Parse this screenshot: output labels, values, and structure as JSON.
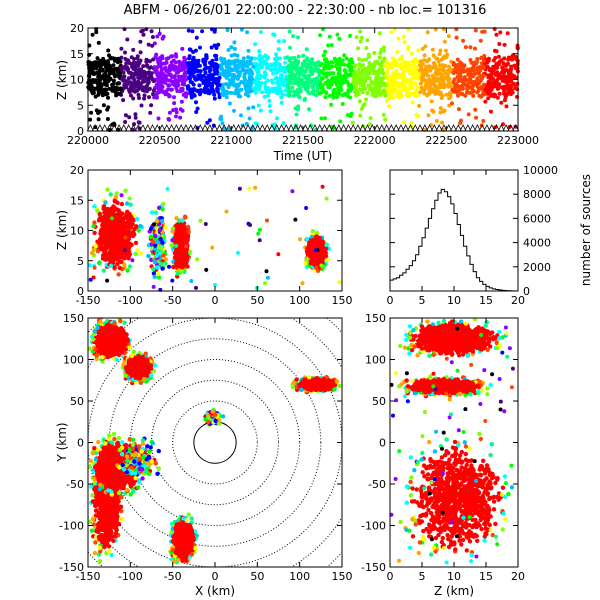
{
  "title": "ABFM - 06/26/01 22:00:00 - 22:30:00 - nb loc.= 101316",
  "colors": {
    "scatter_dense": "#ff0000",
    "rainbow": [
      "#000000",
      "#4b0082",
      "#8b00ff",
      "#0000ff",
      "#00bfff",
      "#00ffff",
      "#00ff7f",
      "#00ff00",
      "#7fff00",
      "#ffff00",
      "#ffa500",
      "#ff4500",
      "#ff0000"
    ],
    "axis": "#000000"
  },
  "chart_data": [
    {
      "id": "time-height",
      "type": "scatter",
      "xlabel": "Time (UT)",
      "ylabel": "Z (km)",
      "xlim": [
        220000,
        223000
      ],
      "ylim": [
        0,
        20
      ],
      "xticks": [
        "220000",
        "220500",
        "221000",
        "221500",
        "222000",
        "222500",
        "223000"
      ],
      "yticks": [
        "0",
        "5",
        "10",
        "15",
        "20"
      ],
      "description_series": [
        {
          "z_band": [
            7,
            14
          ],
          "color_by": "time"
        }
      ]
    },
    {
      "id": "x-z",
      "type": "scatter",
      "xlabel": "",
      "ylabel": "Z (km)",
      "xlim": [
        -150,
        150
      ],
      "ylim": [
        0,
        20
      ],
      "xticks": [
        "-150",
        "-100",
        "-50",
        "0",
        "50",
        "100",
        "150"
      ],
      "yticks": [
        "0",
        "5",
        "10",
        "15",
        "20"
      ],
      "clusters": [
        {
          "x": [
            -150,
            -85
          ],
          "z": [
            2,
            17
          ],
          "dense": true
        },
        {
          "x": [
            -80,
            -55
          ],
          "z": [
            1,
            15
          ],
          "dense": false
        },
        {
          "x": [
            -52,
            -28
          ],
          "z": [
            2,
            13
          ],
          "dense": true
        },
        {
          "x": [
            105,
            135
          ],
          "z": [
            3,
            10
          ],
          "dense": true
        }
      ]
    },
    {
      "id": "histogram",
      "type": "bar",
      "xlabel": "",
      "ylabel": "number of sources",
      "xlim": [
        0,
        20
      ],
      "ylim": [
        0,
        10000
      ],
      "xticks": [
        "0",
        "5",
        "10",
        "15",
        "20"
      ],
      "yticks": [
        "0",
        "2000",
        "4000",
        "6000",
        "8000",
        "10000"
      ],
      "bin_width": 0.5,
      "bins_start": [
        0,
        0.5,
        1,
        1.5,
        2,
        2.5,
        3,
        3.5,
        4,
        4.5,
        5,
        5.5,
        6,
        6.5,
        7,
        7.5,
        8,
        8.5,
        9,
        9.5,
        10,
        10.5,
        11,
        11.5,
        12,
        12.5,
        13,
        13.5,
        14,
        14.5,
        15,
        15.5,
        16,
        16.5,
        17,
        17.5,
        18,
        18.5,
        19,
        19.5
      ],
      "values": [
        900,
        1000,
        1100,
        1300,
        1500,
        1800,
        2100,
        2500,
        3000,
        3700,
        4400,
        5200,
        6000,
        6800,
        7500,
        8100,
        8400,
        8200,
        7800,
        7200,
        6400,
        5500,
        4600,
        3700,
        2900,
        2200,
        1600,
        1100,
        800,
        550,
        380,
        260,
        180,
        120,
        80,
        50,
        30,
        20,
        10,
        5
      ]
    },
    {
      "id": "plan-view",
      "type": "scatter",
      "xlabel": "X (km)",
      "ylabel": "Y (km)",
      "xlim": [
        -150,
        150
      ],
      "ylim": [
        -150,
        150
      ],
      "xticks": [
        "-150",
        "-100",
        "-50",
        "0",
        "50",
        "100",
        "150"
      ],
      "yticks": [
        "-150",
        "-100",
        "-50",
        "0",
        "50",
        "100",
        "150"
      ],
      "range_rings_km": [
        25,
        50,
        75,
        100,
        125,
        150,
        175,
        200
      ],
      "clusters": [
        {
          "x": [
            -150,
            -105
          ],
          "y": [
            -150,
            15
          ],
          "dense": true
        },
        {
          "x": [
            -150,
            -80
          ],
          "y": [
            -70,
            10
          ],
          "dense": true
        },
        {
          "x": [
            -120,
            -60
          ],
          "y": [
            -50,
            10
          ],
          "dense": false
        },
        {
          "x": [
            -150,
            -95
          ],
          "y": [
            95,
            150
          ],
          "dense": true
        },
        {
          "x": [
            -110,
            -70
          ],
          "y": [
            70,
            110
          ],
          "dense": true
        },
        {
          "x": [
            -55,
            -20
          ],
          "y": [
            -150,
            -85
          ],
          "dense": true
        },
        {
          "x": [
            90,
            150
          ],
          "y": [
            60,
            80
          ],
          "dense": true
        },
        {
          "x": [
            -15,
            10
          ],
          "y": [
            20,
            40
          ],
          "dense": false
        }
      ]
    },
    {
      "id": "z-y",
      "type": "scatter",
      "xlabel": "Z (km)",
      "ylabel": "",
      "xlim": [
        0,
        20
      ],
      "ylim": [
        -150,
        150
      ],
      "xticks": [
        "0",
        "5",
        "10",
        "15",
        "20"
      ],
      "yticks": [
        "-150",
        "-100",
        "-50",
        "0",
        "50",
        "100",
        "150"
      ],
      "clusters": [
        {
          "z": [
            1,
            19
          ],
          "y": [
            100,
            150
          ],
          "dense": true
        },
        {
          "z": [
            1,
            16
          ],
          "y": [
            55,
            80
          ],
          "dense": true
        },
        {
          "z": [
            1,
            20
          ],
          "y": [
            -150,
            15
          ],
          "dense": true
        }
      ]
    }
  ]
}
